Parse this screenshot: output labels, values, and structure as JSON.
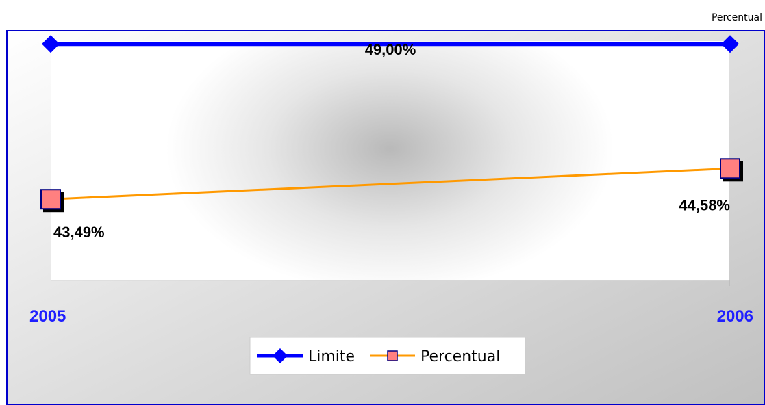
{
  "header": {
    "corner_label": "Percentual"
  },
  "colors": {
    "limite": "#0000ff",
    "percentual_line": "#ff9900",
    "percentual_marker": "#ff8080",
    "marker_border": "#000080",
    "tick_label": "#1f1fff",
    "frame_border": "#0000cc"
  },
  "chart_data": {
    "type": "line",
    "categories": [
      "2005",
      "2006"
    ],
    "series": [
      {
        "name": "Limite",
        "values": [
          49.0,
          49.0
        ],
        "labels": [
          "",
          "49,00%"
        ],
        "marker": "diamond"
      },
      {
        "name": "Percentual",
        "values": [
          43.49,
          44.58
        ],
        "labels": [
          "43,49%",
          "44,58%"
        ],
        "marker": "square"
      }
    ],
    "ylim": [
      40,
      50
    ],
    "legend": "bottom-center",
    "grid": false
  }
}
